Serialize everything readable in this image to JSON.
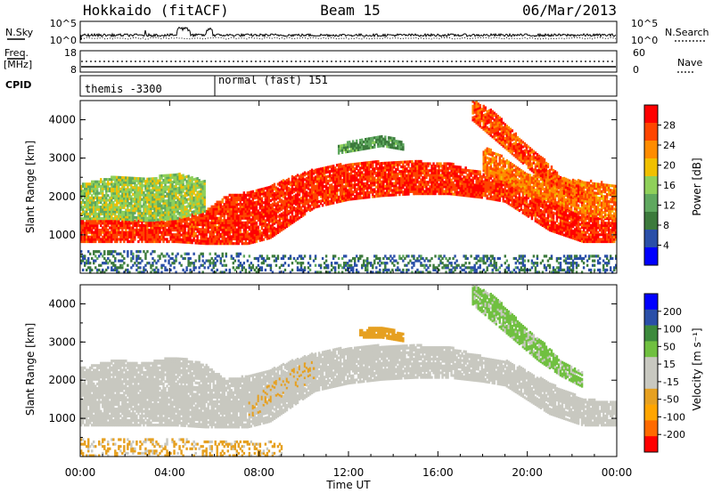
{
  "header": {
    "title_left": "Hokkaido (fitACF)",
    "title_center": "Beam 15",
    "title_right": "06/Mar/2013"
  },
  "status_panels": {
    "nsky_label": "N.Sky",
    "nsearch_label": "N.Search",
    "nsky_ticks": [
      "10^5",
      "10^0"
    ],
    "freq_label_1": "Freq.",
    "freq_label_2": "[MHz]",
    "freq_ticks": [
      "18",
      "8"
    ],
    "nave_ticks": [
      "60",
      "0"
    ],
    "nave_label": "Nave",
    "cpid_label": "CPID",
    "cpid_segments": [
      {
        "label": "themis -3300",
        "start_hour": 0,
        "end_hour": 6
      },
      {
        "label": "normal (fast) 151",
        "start_hour": 6,
        "end_hour": 24
      }
    ]
  },
  "colors": {
    "power_scale": [
      "#0000ff",
      "#2a4fa8",
      "#3c7a3c",
      "#5fa85f",
      "#8fd05a",
      "#f0c000",
      "#ff8c00",
      "#ff4500",
      "#ff0000"
    ],
    "velocity_scale": [
      "#ff0000",
      "#ff6a00",
      "#ffa500",
      "#e6a020",
      "#c8c8c0",
      "#c8c8c0",
      "#70c040",
      "#3c8a3c",
      "#2a4fa8",
      "#0000ff"
    ]
  },
  "chart_data": [
    {
      "type": "heatmap",
      "name": "power",
      "ylabel": "Slant Range [km]",
      "xlabel": "",
      "xlim_hours": [
        0,
        24
      ],
      "ylim": [
        0,
        4500
      ],
      "yticks": [
        "1000",
        "2000",
        "3000",
        "4000"
      ],
      "colorbar_label": "Power [dB]",
      "colorbar_ticks": [
        "28",
        "24",
        "20",
        "16",
        "12",
        "8",
        "4"
      ],
      "colorbar_range": [
        0,
        30
      ],
      "regions": [
        {
          "x": [
            0,
            1.5,
            3.0,
            4.3,
            5.6,
            6.5,
            7.5,
            8.5,
            9.5,
            10.5,
            12.0,
            13.5,
            15.0,
            16.5,
            18.0,
            19.0,
            19.8,
            21.0,
            22.5,
            24.0
          ],
          "lo": [
            800,
            800,
            800,
            800,
            750,
            750,
            750,
            900,
            1300,
            1700,
            1900,
            2000,
            2050,
            2050,
            1950,
            1850,
            1550,
            1100,
            800,
            800
          ],
          "hi": [
            1400,
            1400,
            1350,
            1400,
            1600,
            2000,
            2100,
            2250,
            2500,
            2700,
            2850,
            2900,
            2900,
            2850,
            2600,
            2500,
            2300,
            1900,
            1500,
            1400
          ],
          "power": 28
        },
        {
          "x": [
            0,
            1.5,
            3.0,
            4.3,
            5.6
          ],
          "lo": [
            1400,
            1400,
            1350,
            1400,
            1600
          ],
          "hi": [
            2300,
            2500,
            2450,
            2600,
            2400
          ],
          "power": 15
        },
        {
          "x": [
            18.0,
            19.0,
            20.0,
            21.0,
            22.5,
            24.0
          ],
          "lo": [
            2600,
            2400,
            2000,
            1900,
            1500,
            1400
          ],
          "hi": [
            3300,
            3000,
            2600,
            2500,
            2400,
            2300
          ],
          "power": 24
        },
        {
          "x": [
            17.5,
            18.5,
            19.5,
            20.5,
            21.5,
            22.5
          ],
          "lo": [
            4000,
            3500,
            3000,
            2500,
            2100,
            1800
          ],
          "hi": [
            4500,
            4200,
            3600,
            3100,
            2500,
            2200
          ],
          "power": 26
        },
        {
          "x": [
            11.5,
            12.5,
            13.5,
            14.5
          ],
          "lo": [
            3100,
            3200,
            3300,
            3200
          ],
          "hi": [
            3300,
            3500,
            3600,
            3400
          ],
          "power": 10
        },
        {
          "x": [
            0,
            3,
            6,
            9,
            12,
            15,
            18,
            21,
            24
          ],
          "lo": [
            0,
            0,
            0,
            0,
            0,
            0,
            0,
            0,
            0
          ],
          "hi": [
            600,
            550,
            500,
            450,
            450,
            450,
            450,
            450,
            450
          ],
          "power": 6
        }
      ]
    },
    {
      "type": "heatmap",
      "name": "velocity",
      "ylabel": "Slant Range [km]",
      "xlabel": "Time UT",
      "xlim_hours": [
        0,
        24
      ],
      "ylim": [
        0,
        4500
      ],
      "xticks": [
        "00:00",
        "04:00",
        "08:00",
        "12:00",
        "16:00",
        "20:00",
        "00:00"
      ],
      "yticks": [
        "1000",
        "2000",
        "3000",
        "4000"
      ],
      "colorbar_label": "Velocity [m s⁻¹]",
      "colorbar_ticks": [
        "200",
        "100",
        "50",
        "15",
        "-15",
        "-50",
        "-100",
        "-200"
      ],
      "colorbar_range": [
        -250,
        250
      ],
      "regions": [
        {
          "x": [
            0,
            1.5,
            3.0,
            4.3,
            5.6,
            6.5,
            7.5,
            8.5,
            9.5,
            10.5,
            12.0,
            13.5,
            15.0,
            16.5,
            18.0,
            19.0,
            19.8,
            21.0,
            22.5,
            24.0
          ],
          "lo": [
            800,
            800,
            800,
            800,
            750,
            750,
            750,
            900,
            1300,
            1700,
            1900,
            2000,
            2050,
            2050,
            1950,
            1850,
            1550,
            1100,
            800,
            800
          ],
          "hi": [
            2300,
            2500,
            2450,
            2600,
            2400,
            2000,
            2100,
            2250,
            2500,
            2700,
            2850,
            2900,
            2900,
            2850,
            2600,
            2500,
            2300,
            1900,
            1500,
            1400
          ],
          "velocity": 0
        },
        {
          "x": [
            17.5,
            18.5,
            19.5,
            20.5,
            21.5,
            22.5
          ],
          "lo": [
            4000,
            3500,
            3000,
            2500,
            2100,
            1800
          ],
          "hi": [
            4500,
            4200,
            3600,
            3100,
            2500,
            2200
          ],
          "velocity": 60
        },
        {
          "x": [
            12.5,
            13.5,
            14.5
          ],
          "lo": [
            3100,
            3100,
            3000
          ],
          "hi": [
            3300,
            3400,
            3200
          ],
          "velocity": -70
        },
        {
          "x": [
            7.5,
            8.5,
            9.5,
            10.5
          ],
          "lo": [
            1000,
            1300,
            1700,
            2000
          ],
          "hi": [
            1400,
            1900,
            2300,
            2500
          ],
          "velocity": -40
        },
        {
          "x": [
            0,
            3,
            6,
            9
          ],
          "lo": [
            0,
            0,
            0,
            0
          ],
          "hi": [
            450,
            450,
            400,
            400
          ],
          "velocity": -60
        }
      ]
    }
  ]
}
